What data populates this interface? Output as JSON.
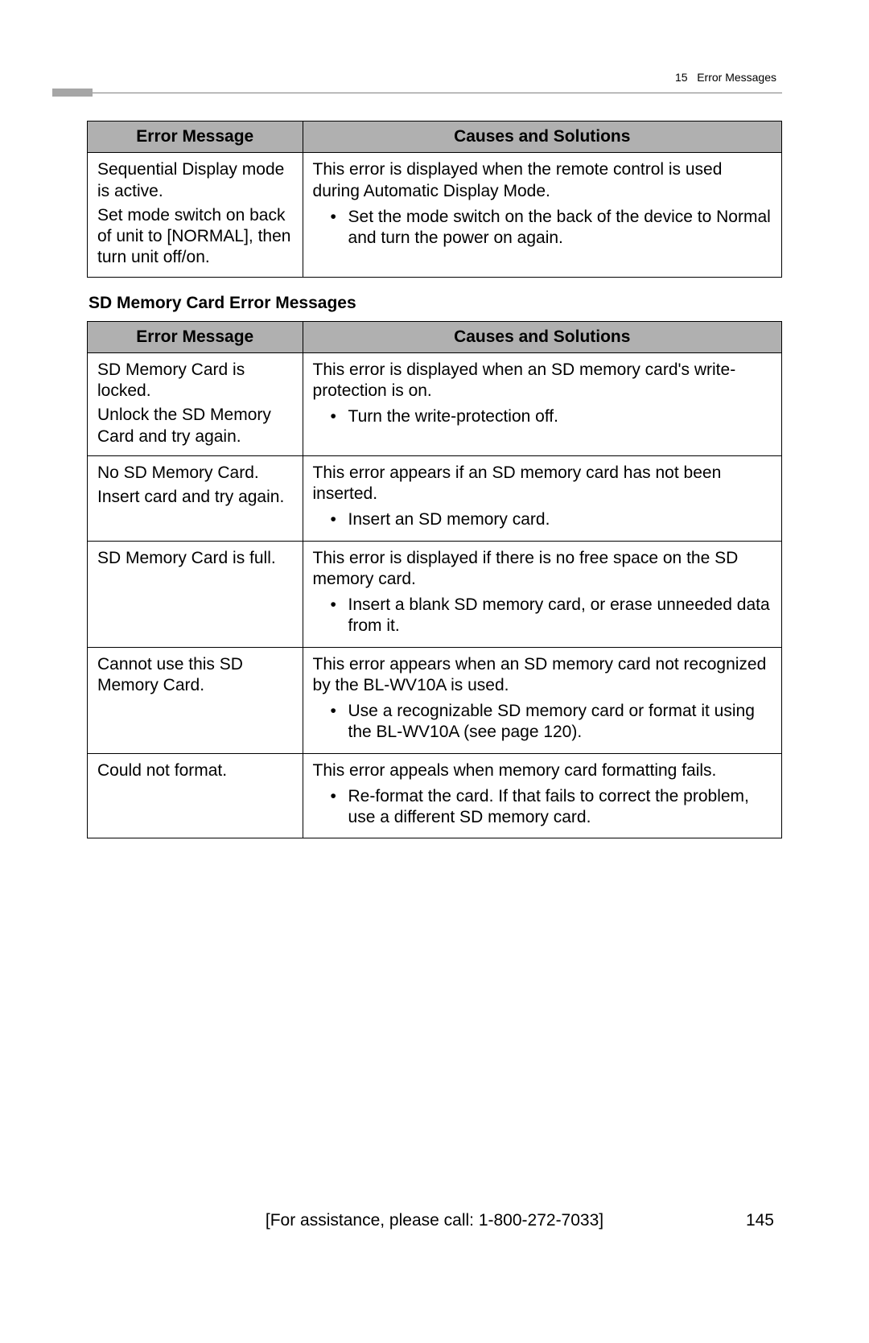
{
  "header": {
    "chapter_no": "15",
    "chapter_title": "Error Messages"
  },
  "table1": {
    "col1": "Error Message",
    "col2": "Causes and Solutions",
    "rows": [
      {
        "msg_line1": "Sequential Display mode is active.",
        "msg_line2": "Set mode switch on back of unit to [NORMAL], then turn unit off/on.",
        "intro": "This error is displayed when the remote control is used during Automatic Display Mode.",
        "bullet": "Set the mode switch on the back of the device to Normal and turn the power on again."
      }
    ]
  },
  "section_title": "SD Memory Card Error Messages",
  "table2": {
    "col1": "Error Message",
    "col2": "Causes and Solutions",
    "rows": [
      {
        "msg_line1": "SD Memory Card is locked.",
        "msg_line2": "Unlock the SD Memory Card and try again.",
        "intro": "This error is displayed when an SD memory card's write-protection is on.",
        "bullet": "Turn the write-protection off."
      },
      {
        "msg_line1": "No SD Memory Card.",
        "msg_line2": "Insert card and try again.",
        "intro": "This error appears if an SD memory card has not been inserted.",
        "bullet": "Insert an SD memory card."
      },
      {
        "msg_line1": "SD Memory Card is full.",
        "msg_line2": "",
        "intro": "This error is displayed if there is no free space on the SD memory card.",
        "bullet": "Insert a blank SD memory card, or erase unneeded data from it."
      },
      {
        "msg_line1": "Cannot use this SD Memory Card.",
        "msg_line2": "",
        "intro": "This error appears when an SD memory card not recognized by the BL-WV10A is used.",
        "bullet": "Use a recognizable SD memory card or format it using the BL-WV10A (see page 120)."
      },
      {
        "msg_line1": "Could not format.",
        "msg_line2": "",
        "intro": "This error appeals when memory card formatting fails.",
        "bullet": "Re-format the card. If that fails to correct the problem, use a different SD memory card."
      }
    ]
  },
  "footer": {
    "assist": "[For assistance, please call: 1-800-272-7033]",
    "page": "145"
  }
}
